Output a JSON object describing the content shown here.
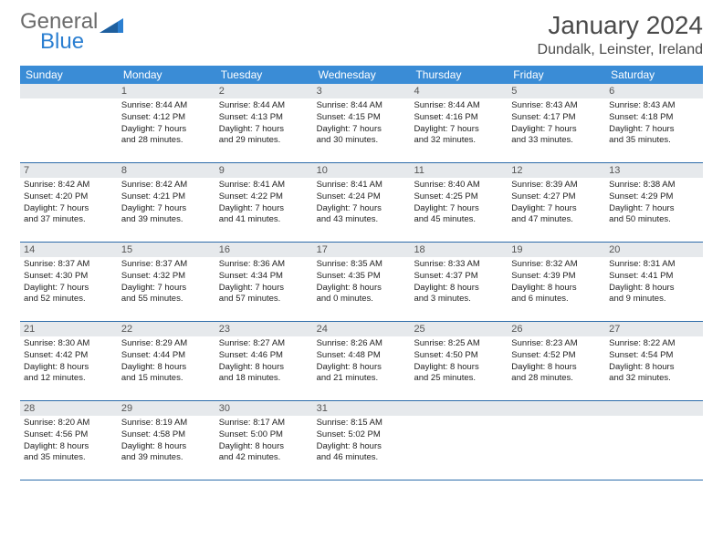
{
  "brand": {
    "word1": "General",
    "word2": "Blue",
    "color_gray": "#6b6b6b",
    "color_blue": "#2b7fd1"
  },
  "title": {
    "month": "January 2024",
    "location": "Dundalk, Leinster, Ireland"
  },
  "colors": {
    "header_bg": "#3a8cd6",
    "daynum_bg": "#e6e9ec",
    "rule": "#2d6caa"
  },
  "dayNames": [
    "Sunday",
    "Monday",
    "Tuesday",
    "Wednesday",
    "Thursday",
    "Friday",
    "Saturday"
  ],
  "weeks": [
    [
      {
        "n": "",
        "sr": "",
        "ss": "",
        "d1": "",
        "d2": ""
      },
      {
        "n": "1",
        "sr": "Sunrise: 8:44 AM",
        "ss": "Sunset: 4:12 PM",
        "d1": "Daylight: 7 hours",
        "d2": "and 28 minutes."
      },
      {
        "n": "2",
        "sr": "Sunrise: 8:44 AM",
        "ss": "Sunset: 4:13 PM",
        "d1": "Daylight: 7 hours",
        "d2": "and 29 minutes."
      },
      {
        "n": "3",
        "sr": "Sunrise: 8:44 AM",
        "ss": "Sunset: 4:15 PM",
        "d1": "Daylight: 7 hours",
        "d2": "and 30 minutes."
      },
      {
        "n": "4",
        "sr": "Sunrise: 8:44 AM",
        "ss": "Sunset: 4:16 PM",
        "d1": "Daylight: 7 hours",
        "d2": "and 32 minutes."
      },
      {
        "n": "5",
        "sr": "Sunrise: 8:43 AM",
        "ss": "Sunset: 4:17 PM",
        "d1": "Daylight: 7 hours",
        "d2": "and 33 minutes."
      },
      {
        "n": "6",
        "sr": "Sunrise: 8:43 AM",
        "ss": "Sunset: 4:18 PM",
        "d1": "Daylight: 7 hours",
        "d2": "and 35 minutes."
      }
    ],
    [
      {
        "n": "7",
        "sr": "Sunrise: 8:42 AM",
        "ss": "Sunset: 4:20 PM",
        "d1": "Daylight: 7 hours",
        "d2": "and 37 minutes."
      },
      {
        "n": "8",
        "sr": "Sunrise: 8:42 AM",
        "ss": "Sunset: 4:21 PM",
        "d1": "Daylight: 7 hours",
        "d2": "and 39 minutes."
      },
      {
        "n": "9",
        "sr": "Sunrise: 8:41 AM",
        "ss": "Sunset: 4:22 PM",
        "d1": "Daylight: 7 hours",
        "d2": "and 41 minutes."
      },
      {
        "n": "10",
        "sr": "Sunrise: 8:41 AM",
        "ss": "Sunset: 4:24 PM",
        "d1": "Daylight: 7 hours",
        "d2": "and 43 minutes."
      },
      {
        "n": "11",
        "sr": "Sunrise: 8:40 AM",
        "ss": "Sunset: 4:25 PM",
        "d1": "Daylight: 7 hours",
        "d2": "and 45 minutes."
      },
      {
        "n": "12",
        "sr": "Sunrise: 8:39 AM",
        "ss": "Sunset: 4:27 PM",
        "d1": "Daylight: 7 hours",
        "d2": "and 47 minutes."
      },
      {
        "n": "13",
        "sr": "Sunrise: 8:38 AM",
        "ss": "Sunset: 4:29 PM",
        "d1": "Daylight: 7 hours",
        "d2": "and 50 minutes."
      }
    ],
    [
      {
        "n": "14",
        "sr": "Sunrise: 8:37 AM",
        "ss": "Sunset: 4:30 PM",
        "d1": "Daylight: 7 hours",
        "d2": "and 52 minutes."
      },
      {
        "n": "15",
        "sr": "Sunrise: 8:37 AM",
        "ss": "Sunset: 4:32 PM",
        "d1": "Daylight: 7 hours",
        "d2": "and 55 minutes."
      },
      {
        "n": "16",
        "sr": "Sunrise: 8:36 AM",
        "ss": "Sunset: 4:34 PM",
        "d1": "Daylight: 7 hours",
        "d2": "and 57 minutes."
      },
      {
        "n": "17",
        "sr": "Sunrise: 8:35 AM",
        "ss": "Sunset: 4:35 PM",
        "d1": "Daylight: 8 hours",
        "d2": "and 0 minutes."
      },
      {
        "n": "18",
        "sr": "Sunrise: 8:33 AM",
        "ss": "Sunset: 4:37 PM",
        "d1": "Daylight: 8 hours",
        "d2": "and 3 minutes."
      },
      {
        "n": "19",
        "sr": "Sunrise: 8:32 AM",
        "ss": "Sunset: 4:39 PM",
        "d1": "Daylight: 8 hours",
        "d2": "and 6 minutes."
      },
      {
        "n": "20",
        "sr": "Sunrise: 8:31 AM",
        "ss": "Sunset: 4:41 PM",
        "d1": "Daylight: 8 hours",
        "d2": "and 9 minutes."
      }
    ],
    [
      {
        "n": "21",
        "sr": "Sunrise: 8:30 AM",
        "ss": "Sunset: 4:42 PM",
        "d1": "Daylight: 8 hours",
        "d2": "and 12 minutes."
      },
      {
        "n": "22",
        "sr": "Sunrise: 8:29 AM",
        "ss": "Sunset: 4:44 PM",
        "d1": "Daylight: 8 hours",
        "d2": "and 15 minutes."
      },
      {
        "n": "23",
        "sr": "Sunrise: 8:27 AM",
        "ss": "Sunset: 4:46 PM",
        "d1": "Daylight: 8 hours",
        "d2": "and 18 minutes."
      },
      {
        "n": "24",
        "sr": "Sunrise: 8:26 AM",
        "ss": "Sunset: 4:48 PM",
        "d1": "Daylight: 8 hours",
        "d2": "and 21 minutes."
      },
      {
        "n": "25",
        "sr": "Sunrise: 8:25 AM",
        "ss": "Sunset: 4:50 PM",
        "d1": "Daylight: 8 hours",
        "d2": "and 25 minutes."
      },
      {
        "n": "26",
        "sr": "Sunrise: 8:23 AM",
        "ss": "Sunset: 4:52 PM",
        "d1": "Daylight: 8 hours",
        "d2": "and 28 minutes."
      },
      {
        "n": "27",
        "sr": "Sunrise: 8:22 AM",
        "ss": "Sunset: 4:54 PM",
        "d1": "Daylight: 8 hours",
        "d2": "and 32 minutes."
      }
    ],
    [
      {
        "n": "28",
        "sr": "Sunrise: 8:20 AM",
        "ss": "Sunset: 4:56 PM",
        "d1": "Daylight: 8 hours",
        "d2": "and 35 minutes."
      },
      {
        "n": "29",
        "sr": "Sunrise: 8:19 AM",
        "ss": "Sunset: 4:58 PM",
        "d1": "Daylight: 8 hours",
        "d2": "and 39 minutes."
      },
      {
        "n": "30",
        "sr": "Sunrise: 8:17 AM",
        "ss": "Sunset: 5:00 PM",
        "d1": "Daylight: 8 hours",
        "d2": "and 42 minutes."
      },
      {
        "n": "31",
        "sr": "Sunrise: 8:15 AM",
        "ss": "Sunset: 5:02 PM",
        "d1": "Daylight: 8 hours",
        "d2": "and 46 minutes."
      },
      {
        "n": "",
        "sr": "",
        "ss": "",
        "d1": "",
        "d2": ""
      },
      {
        "n": "",
        "sr": "",
        "ss": "",
        "d1": "",
        "d2": ""
      },
      {
        "n": "",
        "sr": "",
        "ss": "",
        "d1": "",
        "d2": ""
      }
    ]
  ]
}
